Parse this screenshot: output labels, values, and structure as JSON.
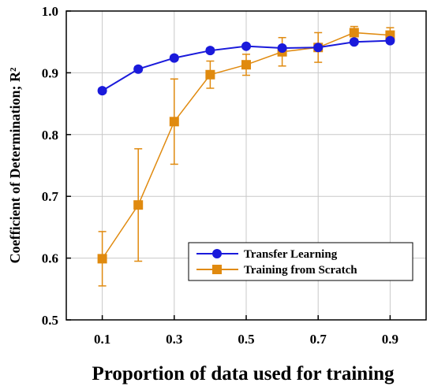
{
  "chart_data": {
    "type": "line",
    "xlabel": "Proportion of data used for training",
    "ylabel": "Coefficient of Determination; R²",
    "xlim": [
      0,
      1
    ],
    "ylim": [
      0.5,
      1.0
    ],
    "x_ticks": [
      0.1,
      0.3,
      0.5,
      0.7,
      0.9
    ],
    "x_tick_labels": [
      "0.1",
      "0.3",
      "0.5",
      "0.7",
      "0.9"
    ],
    "y_ticks": [
      0.5,
      0.6,
      0.7,
      0.8,
      0.9,
      1.0
    ],
    "y_tick_labels": [
      "0.5",
      "0.6",
      "0.7",
      "0.8",
      "0.9",
      "1.0"
    ],
    "grid": true,
    "legend_position": "bottom-right",
    "series": [
      {
        "name": "Transfer Learning",
        "color": "#1a1adb",
        "marker": "circle",
        "x": [
          0.1,
          0.2,
          0.3,
          0.4,
          0.5,
          0.6,
          0.7,
          0.8,
          0.9
        ],
        "y": [
          0.871,
          0.906,
          0.924,
          0.936,
          0.943,
          0.94,
          0.941,
          0.95,
          0.952
        ],
        "err": [
          0.004,
          0.004,
          0.004,
          0.004,
          0.003,
          0.003,
          0.003,
          0.003,
          0.004
        ]
      },
      {
        "name": "Training from Scratch",
        "color": "#e08a0f",
        "marker": "square",
        "x": [
          0.1,
          0.2,
          0.3,
          0.4,
          0.5,
          0.6,
          0.7,
          0.8,
          0.9
        ],
        "y": [
          0.599,
          0.686,
          0.821,
          0.897,
          0.913,
          0.934,
          0.941,
          0.965,
          0.961
        ],
        "err": [
          0.044,
          0.091,
          0.069,
          0.022,
          0.017,
          0.023,
          0.024,
          0.01,
          0.012
        ]
      }
    ]
  }
}
